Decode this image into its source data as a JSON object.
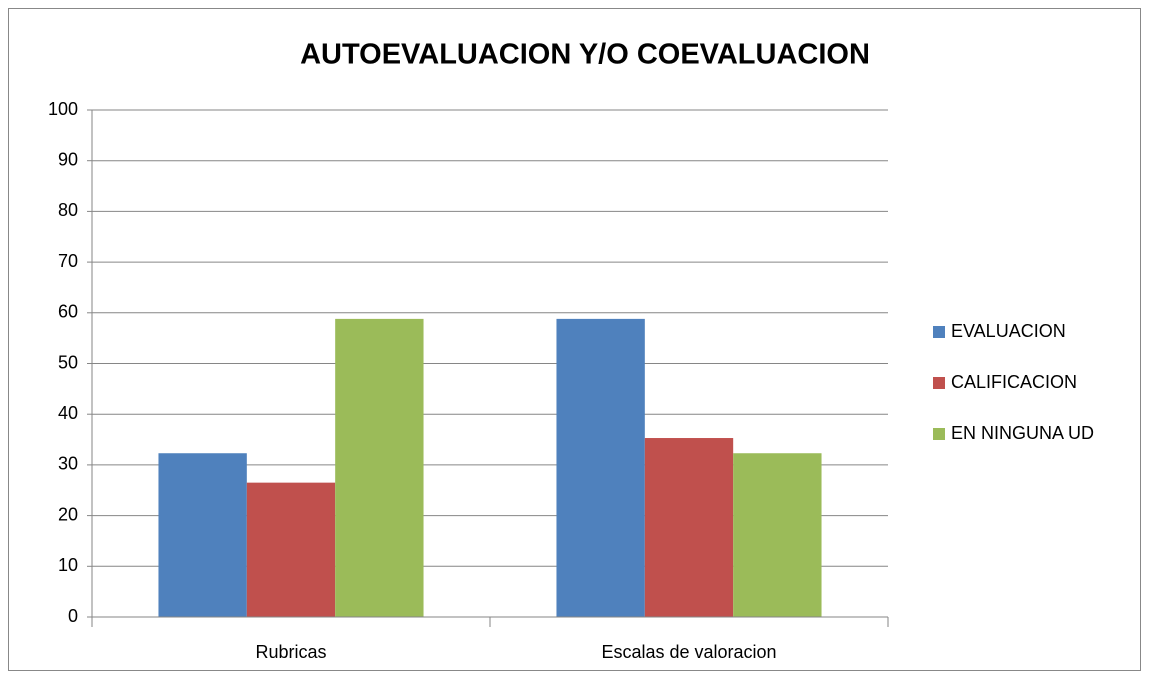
{
  "chart_data": {
    "type": "bar",
    "title": "AUTOEVALUACION Y/O COEVALUACION",
    "categories": [
      "Rubricas",
      "Escalas de valoracion"
    ],
    "series": [
      {
        "name": "EVALUACION",
        "color": "#4f81bd",
        "values": [
          32.3,
          58.8
        ]
      },
      {
        "name": "CALIFICACION",
        "color": "#c0504d",
        "values": [
          26.5,
          35.3
        ]
      },
      {
        "name": "EN NINGUNA UD",
        "color": "#9bbb59",
        "values": [
          58.8,
          32.3
        ]
      }
    ],
    "ylim": [
      0,
      100
    ],
    "yticks": [
      0,
      10,
      20,
      30,
      40,
      50,
      60,
      70,
      80,
      90,
      100
    ],
    "grid": true,
    "legend": "right"
  }
}
